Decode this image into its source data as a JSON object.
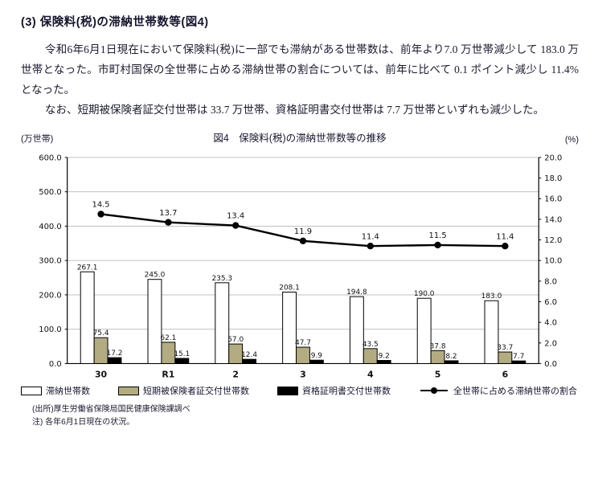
{
  "page": {
    "heading": "(3) 保険料(税)の滞納世帯数等(図4)",
    "paragraph1": "令和6年6月1日現在において保険料(税)に一部でも滞納がある世帯数は、前年より7.0 万世帯減少して 183.0 万世帯となった。市町村国保の全世帯に占める滞納世帯の割合については、前年に比べて 0.1 ポイント減少し 11.4%となった。",
    "paragraph2": "なお、短期被保険者証交付世帯は 33.7 万世帯、資格証明書交付世帯は 7.7 万世帯といずれも減少した。",
    "source_note": "(出所)厚生労働省保険局国民健康保険課調べ",
    "date_note": "注) 各年6月1日現在の状況。"
  },
  "chart_data": {
    "type": "bar+line combo",
    "title": "図4　保険料(税)の滞納世帯数等の推移",
    "left_axis_label": "(万世帯)",
    "right_axis_label": "(%)",
    "legend_position": "bottom",
    "grid": true,
    "categories": [
      "30",
      "R1",
      "2",
      "3",
      "4",
      "5",
      "6"
    ],
    "left_axis": {
      "min": 0,
      "max": 600,
      "step": 100,
      "ticks": [
        "0.0",
        "100.0",
        "200.0",
        "300.0",
        "400.0",
        "500.0",
        "600.0"
      ]
    },
    "right_axis": {
      "min": 0,
      "max": 20,
      "step": 2,
      "ticks": [
        "0.0",
        "2.0",
        "4.0",
        "6.0",
        "8.0",
        "10.0",
        "12.0",
        "14.0",
        "16.0",
        "18.0",
        "20.0"
      ]
    },
    "series": [
      {
        "name": "滞納世帯数",
        "type": "bar",
        "axis": "left",
        "color": "#ffffff",
        "values": [
          267.1,
          245.0,
          235.3,
          208.1,
          194.8,
          190.0,
          183.0
        ]
      },
      {
        "name": "短期被保険者証交付世帯数",
        "type": "bar",
        "axis": "left",
        "color": "#b3ab82",
        "values": [
          75.4,
          62.1,
          57.0,
          47.7,
          43.5,
          37.8,
          33.7
        ]
      },
      {
        "name": "資格証明書交付世帯数",
        "type": "bar",
        "axis": "left",
        "color": "#000000",
        "values": [
          17.2,
          15.1,
          12.4,
          9.9,
          9.2,
          8.2,
          7.7
        ]
      },
      {
        "name": "全世帯に占める滞納世帯の割合",
        "type": "line",
        "axis": "right",
        "color": "#000000",
        "values": [
          14.5,
          13.7,
          13.4,
          11.9,
          11.4,
          11.5,
          11.4
        ]
      }
    ]
  }
}
